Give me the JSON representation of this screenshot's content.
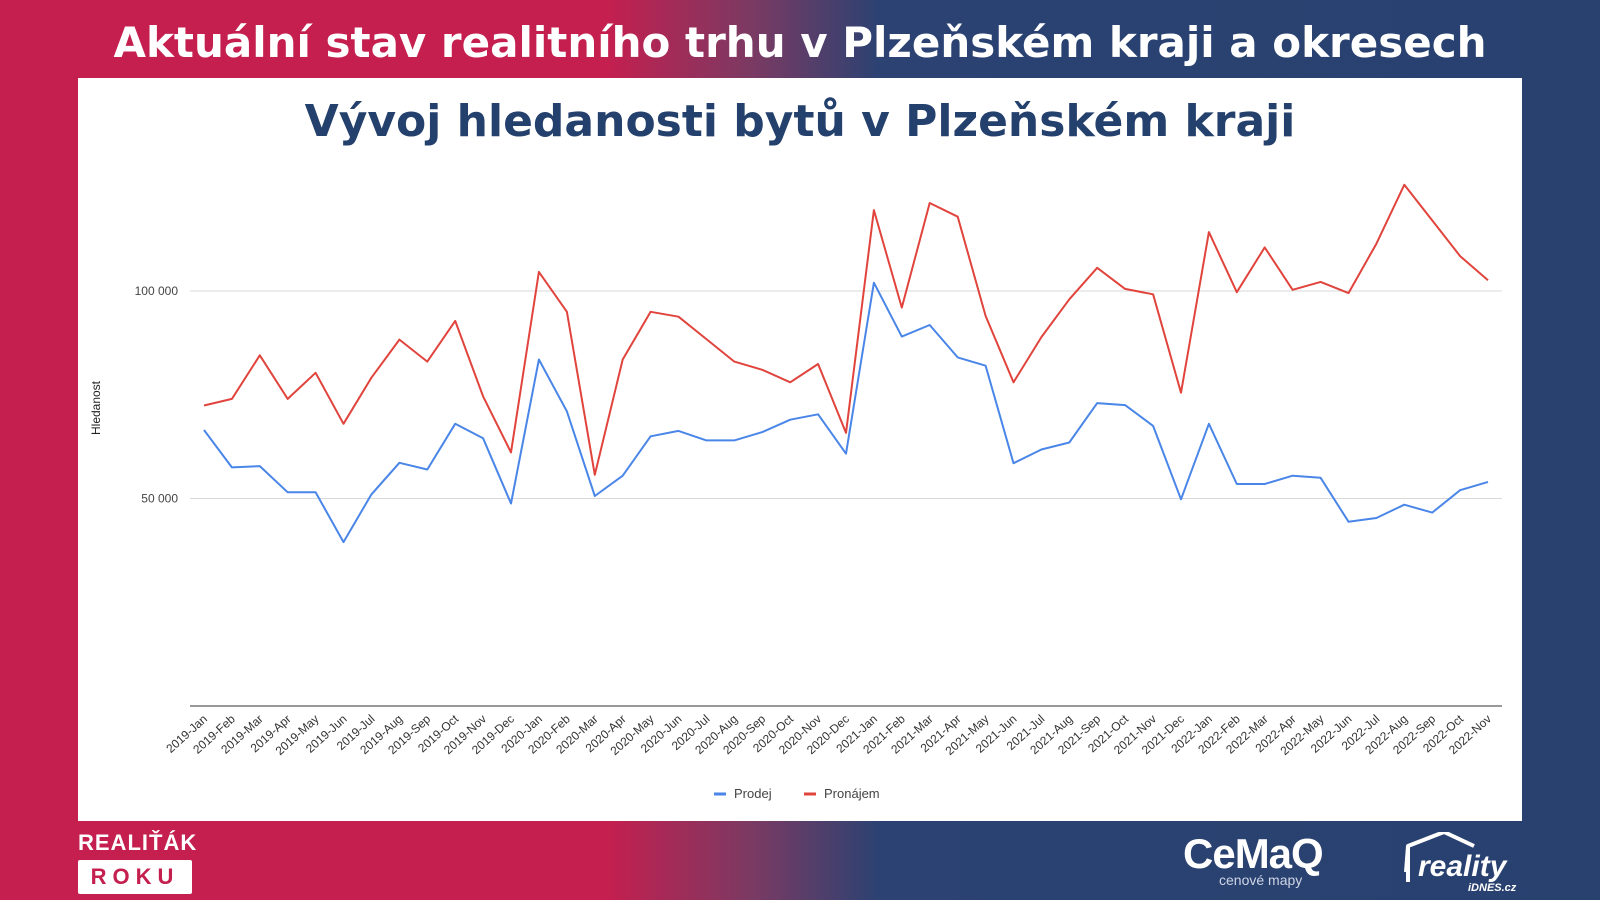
{
  "header": {
    "title": "Aktuální stav realitního trhu v Plzeňském kraji a okresech"
  },
  "chart_data": {
    "type": "line",
    "title": "Vývoj hledanosti bytů v Plzeňském kraji",
    "xlabel": "",
    "ylabel": "Hledanost",
    "ylim": [
      0,
      120000
    ],
    "yticks": [
      50000,
      100000
    ],
    "ytick_labels": [
      "50 000",
      "100 000"
    ],
    "grid": true,
    "legend_position": "bottom",
    "categories": [
      "2019-Jan",
      "2019-Feb",
      "2019-Mar",
      "2019-Apr",
      "2019-May",
      "2019-Jun",
      "2019-Jul",
      "2019-Aug",
      "2019-Sep",
      "2019-Oct",
      "2019-Nov",
      "2019-Dec",
      "2020-Jan",
      "2020-Feb",
      "2020-Mar",
      "2020-Apr",
      "2020-May",
      "2020-Jun",
      "2020-Jul",
      "2020-Aug",
      "2020-Sep",
      "2020-Oct",
      "2020-Nov",
      "2020-Dec",
      "2021-Jan",
      "2021-Feb",
      "2021-Mar",
      "2021-Apr",
      "2021-May",
      "2021-Jun",
      "2021-Jul",
      "2021-Aug",
      "2021-Sep",
      "2021-Oct",
      "2021-Nov",
      "2021-Dec",
      "2022-Jan",
      "2022-Feb",
      "2022-Mar",
      "2022-Apr",
      "2022-May",
      "2022-Jun",
      "2022-Jul",
      "2022-Aug",
      "2022-Sep",
      "2022-Oct",
      "2022-Nov"
    ],
    "series": [
      {
        "name": "Prodej",
        "color": "#4a86e8",
        "values": [
          66500,
          57500,
          57800,
          51500,
          51500,
          39500,
          51000,
          58600,
          57000,
          68000,
          64500,
          48800,
          83500,
          71000,
          50600,
          55500,
          65000,
          66300,
          64000,
          64000,
          66000,
          69000,
          70300,
          60800,
          102000,
          89000,
          91800,
          84000,
          82000,
          58500,
          61800,
          63500,
          73000,
          72500,
          67500,
          49800,
          68000,
          53500,
          53500,
          55500,
          55000,
          44400,
          45300,
          48500,
          46600,
          52000,
          54000
        ]
      },
      {
        "name": "Pronájem",
        "color": "#e0443c",
        "values": [
          72400,
          74000,
          84500,
          74000,
          80300,
          68000,
          79100,
          88300,
          83000,
          92800,
          74600,
          61100,
          104600,
          95000,
          55700,
          83500,
          95000,
          93800,
          88400,
          83000,
          81000,
          78000,
          82400,
          65800,
          119500,
          96000,
          121200,
          117900,
          94000,
          78000,
          88900,
          98000,
          105600,
          100500,
          99200,
          75500,
          114200,
          99700,
          110500,
          100300,
          102200,
          99500,
          111400,
          125600,
          117000,
          108400,
          102600
        ]
      }
    ]
  },
  "footer": {
    "brand_left_top": "REALIŤÁK",
    "brand_left_box": "ROKU",
    "cemap_name": "CeMaQ",
    "cemap_sub": "cenové mapy",
    "reality_name": "reality",
    "reality_sub": "iDNES.cz"
  }
}
